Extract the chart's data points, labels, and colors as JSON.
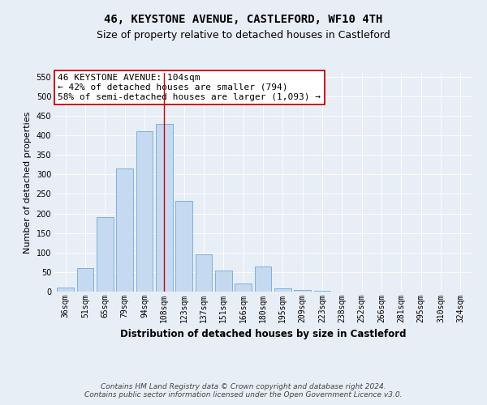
{
  "title": "46, KEYSTONE AVENUE, CASTLEFORD, WF10 4TH",
  "subtitle": "Size of property relative to detached houses in Castleford",
  "xlabel": "Distribution of detached houses by size in Castleford",
  "ylabel": "Number of detached properties",
  "categories": [
    "36sqm",
    "51sqm",
    "65sqm",
    "79sqm",
    "94sqm",
    "108sqm",
    "123sqm",
    "137sqm",
    "151sqm",
    "166sqm",
    "180sqm",
    "195sqm",
    "209sqm",
    "223sqm",
    "238sqm",
    "252sqm",
    "266sqm",
    "281sqm",
    "295sqm",
    "310sqm",
    "324sqm"
  ],
  "values": [
    10,
    60,
    190,
    315,
    410,
    430,
    232,
    95,
    53,
    20,
    65,
    8,
    5,
    2,
    1,
    0,
    0,
    0,
    0,
    0,
    1
  ],
  "bar_color": "#c5d9f0",
  "bar_edge_color": "#6fa8dc",
  "vline_x": 5,
  "vline_color": "#cc0000",
  "annotation_line1": "46 KEYSTONE AVENUE: 104sqm",
  "annotation_line2": "← 42% of detached houses are smaller (794)",
  "annotation_line3": "58% of semi-detached houses are larger (1,093) →",
  "annotation_box_color": "#ffffff",
  "annotation_box_edge": "#cc0000",
  "ylim": [
    0,
    560
  ],
  "yticks": [
    0,
    50,
    100,
    150,
    200,
    250,
    300,
    350,
    400,
    450,
    500,
    550
  ],
  "footer_line1": "Contains HM Land Registry data © Crown copyright and database right 2024.",
  "footer_line2": "Contains public sector information licensed under the Open Government Licence v3.0.",
  "bg_color": "#e8eef5",
  "plot_bg_color": "#e8eef5",
  "title_fontsize": 10,
  "subtitle_fontsize": 9,
  "xlabel_fontsize": 8.5,
  "ylabel_fontsize": 8,
  "tick_fontsize": 7,
  "annotation_fontsize": 8,
  "footer_fontsize": 6.5
}
